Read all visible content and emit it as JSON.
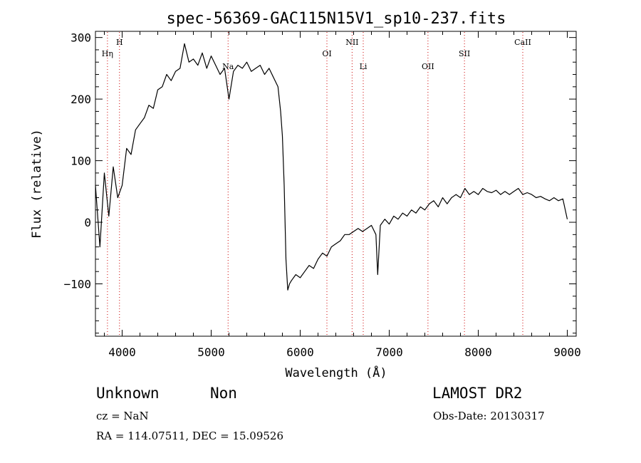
{
  "chart_data": {
    "type": "line",
    "title": "spec-56369-GAC115N15V1_sp10-237.fits",
    "xlabel": "Wavelength (Å)",
    "ylabel": "Flux (relative)",
    "xlim": [
      3700,
      9100
    ],
    "ylim": [
      -185,
      310
    ],
    "x_ticks": [
      4000,
      5000,
      6000,
      7000,
      8000,
      9000
    ],
    "y_ticks": [
      -100,
      0,
      100,
      200,
      300
    ],
    "grid": false,
    "series": [
      {
        "line_color": "#000000",
        "x": [
          3700,
          3750,
          3800,
          3850,
          3900,
          3950,
          4000,
          4050,
          4100,
          4150,
          4200,
          4250,
          4300,
          4350,
          4400,
          4450,
          4500,
          4550,
          4600,
          4650,
          4700,
          4750,
          4800,
          4850,
          4900,
          4950,
          5000,
          5050,
          5100,
          5150,
          5200,
          5250,
          5300,
          5350,
          5400,
          5450,
          5500,
          5550,
          5600,
          5650,
          5700,
          5750,
          5780,
          5800,
          5820,
          5840,
          5860,
          5880,
          5900,
          5950,
          6000,
          6050,
          6100,
          6150,
          6200,
          6250,
          6300,
          6350,
          6400,
          6450,
          6500,
          6550,
          6600,
          6650,
          6700,
          6750,
          6800,
          6850,
          6870,
          6900,
          6950,
          7000,
          7050,
          7100,
          7150,
          7200,
          7250,
          7300,
          7350,
          7400,
          7450,
          7500,
          7550,
          7600,
          7650,
          7700,
          7750,
          7800,
          7850,
          7900,
          7950,
          8000,
          8050,
          8100,
          8150,
          8200,
          8250,
          8300,
          8350,
          8400,
          8450,
          8500,
          8550,
          8600,
          8650,
          8700,
          8750,
          8800,
          8850,
          8900,
          8950,
          9000
        ],
        "y": [
          60,
          -40,
          80,
          10,
          90,
          40,
          60,
          120,
          110,
          150,
          160,
          170,
          190,
          185,
          215,
          220,
          240,
          230,
          245,
          250,
          290,
          260,
          265,
          255,
          275,
          250,
          270,
          255,
          240,
          250,
          200,
          245,
          255,
          250,
          260,
          245,
          250,
          255,
          240,
          250,
          235,
          220,
          180,
          140,
          60,
          -60,
          -110,
          -100,
          -95,
          -85,
          -90,
          -80,
          -70,
          -75,
          -60,
          -50,
          -55,
          -40,
          -35,
          -30,
          -20,
          -20,
          -15,
          -10,
          -15,
          -10,
          -5,
          -20,
          -85,
          -5,
          5,
          -3,
          10,
          5,
          15,
          10,
          20,
          15,
          25,
          20,
          30,
          35,
          25,
          40,
          30,
          40,
          45,
          40,
          55,
          45,
          50,
          45,
          55,
          50,
          48,
          52,
          45,
          50,
          45,
          50,
          55,
          45,
          48,
          45,
          40,
          42,
          38,
          35,
          40,
          35,
          38,
          5
        ]
      }
    ],
    "line_markers": [
      {
        "label": "Hη",
        "x": 3835,
        "label_row": 1
      },
      {
        "label": "H",
        "x": 3970,
        "label_row": 0
      },
      {
        "label": "Na",
        "x": 5190,
        "label_row": 2
      },
      {
        "label": "OI",
        "x": 6300,
        "label_row": 1
      },
      {
        "label": "NII",
        "x": 6583,
        "label_row": 0
      },
      {
        "label": "Li",
        "x": 6708,
        "label_row": 2
      },
      {
        "label": "OII",
        "x": 7435,
        "label_row": 2
      },
      {
        "label": "SII",
        "x": 7845,
        "label_row": 1
      },
      {
        "label": "CaII",
        "x": 8500,
        "label_row": 0
      }
    ],
    "marker_line_color": "#cc0000"
  },
  "info": {
    "class": "Unknown",
    "subclass": "Non",
    "survey": "LAMOST DR2",
    "cz": "cz = NaN",
    "obs_date": "Obs-Date: 20130317",
    "coords": "RA = 114.07511, DEC =  15.09526"
  }
}
